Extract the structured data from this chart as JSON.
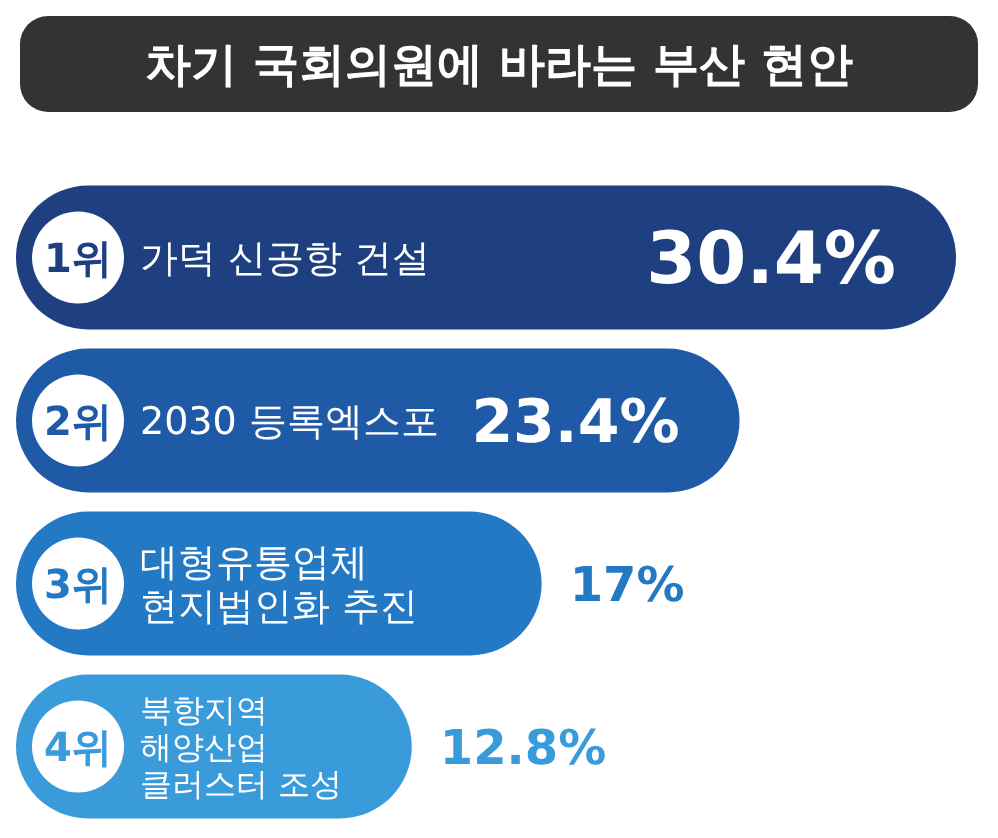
{
  "chart_data": {
    "type": "bar",
    "orientation": "horizontal",
    "title": "차기 국회의원에 바라는 부산 현안",
    "categories": [
      "가덕 신공항 건설",
      "2030 등록엑스포",
      "대형유통업체 현지법인화 추진",
      "북항지역 해양산업 클러스터 조성"
    ],
    "values": [
      30.4,
      23.4,
      17,
      12.8
    ],
    "value_labels": [
      "30.4%",
      "23.4%",
      "17%",
      "12.8%"
    ],
    "colors": [
      "#1e3f80",
      "#1f5aa6",
      "#2479c4",
      "#3a9bdb"
    ],
    "annotations": [
      "1위",
      "2위",
      "3위",
      "4위"
    ]
  }
}
